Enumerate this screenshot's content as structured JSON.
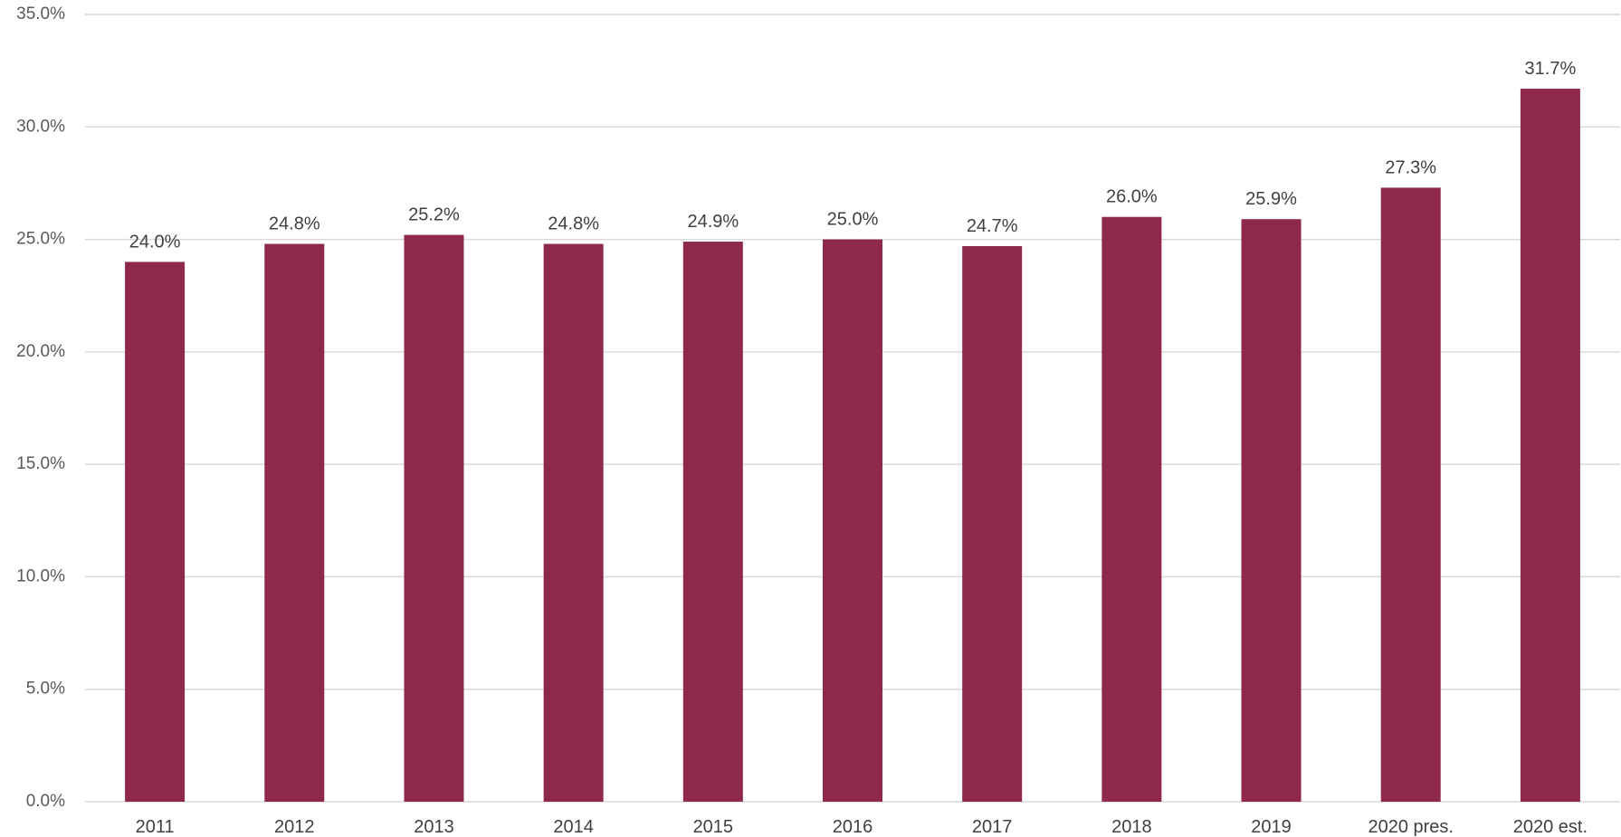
{
  "chart_data": {
    "type": "bar",
    "categories": [
      "2011",
      "2012",
      "2013",
      "2014",
      "2015",
      "2016",
      "2017",
      "2018",
      "2019",
      "2020 pres.",
      "2020 est."
    ],
    "values": [
      24.0,
      24.8,
      25.2,
      24.8,
      24.9,
      25.0,
      24.7,
      26.0,
      25.9,
      27.3,
      31.7
    ],
    "data_labels": [
      "24.0%",
      "24.8%",
      "25.2%",
      "24.8%",
      "24.9%",
      "25.0%",
      "24.7%",
      "26.0%",
      "25.9%",
      "27.3%",
      "31.7%"
    ],
    "y_ticks": [
      0,
      5,
      10,
      15,
      20,
      25,
      30,
      35
    ],
    "y_tick_labels": [
      "0.0%",
      "5.0%",
      "10.0%",
      "15.0%",
      "20.0%",
      "25.0%",
      "30.0%",
      "35.0%"
    ],
    "ylim": [
      0,
      35
    ],
    "grid": true,
    "legend": "none",
    "title": "",
    "xlabel": "",
    "ylabel": "",
    "colors": {
      "bar": "#8f2949",
      "grid": "#d9d9d9",
      "label_text": "#404040",
      "tick_text": "#595959",
      "background": "#ffffff"
    }
  }
}
